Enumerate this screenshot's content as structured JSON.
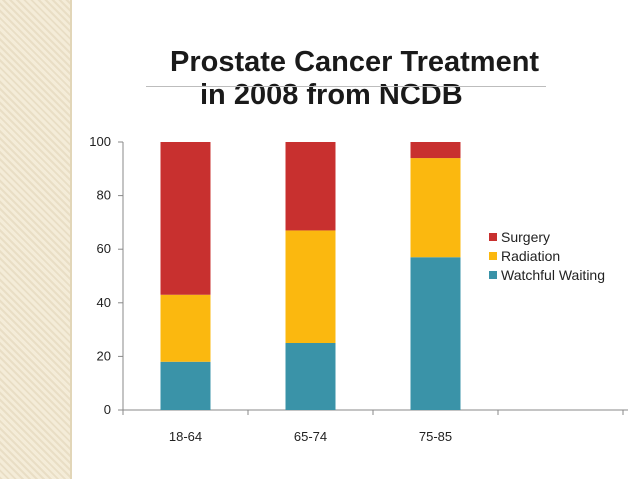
{
  "chart_data": {
    "type": "bar",
    "stacked": true,
    "title": "Prostate Cancer Treatment in 2008 from NCDB",
    "title_lines": [
      "Prostate Cancer Treatment",
      "in 2008 from NCDB"
    ],
    "xlabel": "",
    "ylabel": "",
    "categories": [
      "18-64",
      "65-74",
      "75-85"
    ],
    "ylim": [
      0,
      100
    ],
    "yticks": [
      0,
      20,
      40,
      60,
      80,
      100
    ],
    "grid": false,
    "legend_position": "right",
    "series": [
      {
        "name": "Watchful Waiting",
        "color": "#3a93a8",
        "values": [
          18,
          25,
          57
        ]
      },
      {
        "name": "Radiation",
        "color": "#fbb80f",
        "values": [
          25,
          42,
          37
        ]
      },
      {
        "name": "Surgery",
        "color": "#c8302f",
        "values": [
          57,
          33,
          6
        ]
      }
    ],
    "legend_order": [
      "Surgery",
      "Radiation",
      "Watchful Waiting"
    ]
  }
}
